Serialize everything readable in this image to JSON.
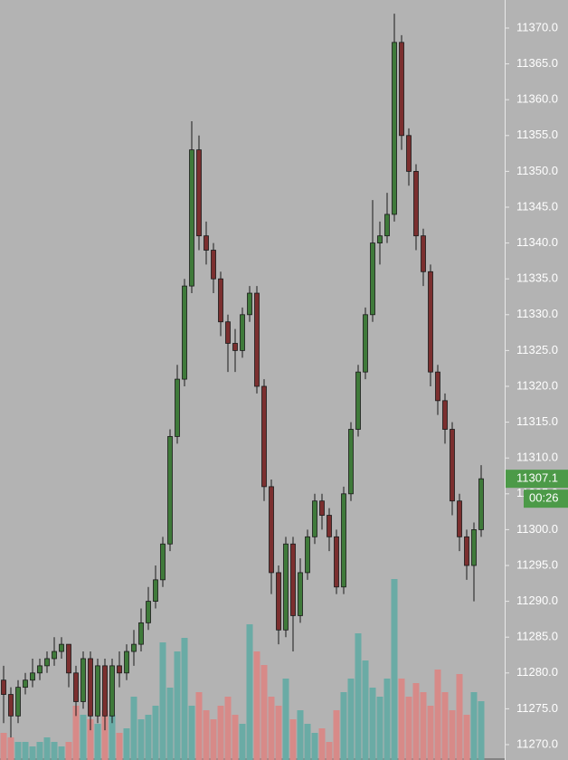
{
  "chart_data": {
    "type": "candlestick",
    "open": [
      11279,
      11277,
      11274,
      11278,
      11279,
      11280,
      11281,
      11282,
      11283,
      11284,
      11280,
      11276,
      11282,
      11274,
      11281,
      11274,
      11281,
      11280,
      11283,
      11284,
      11287,
      11290,
      11293,
      11298,
      11313,
      11321,
      11334,
      11353,
      11341,
      11339,
      11335,
      11329,
      11326,
      11325,
      11330,
      11333,
      11320,
      11306,
      11294,
      11286,
      11298,
      11288,
      11294,
      11299,
      11304,
      11302,
      11299,
      11292,
      11305,
      11314,
      11322,
      11330,
      11340,
      11341,
      11344,
      11368,
      11355,
      11350,
      11341,
      11336,
      11322,
      11318,
      11314,
      11304,
      11299,
      11295,
      11300
    ],
    "high": [
      11281,
      11278,
      11279,
      11280,
      11282,
      11282,
      11283,
      11285,
      11285,
      11284,
      11281,
      11283,
      11283,
      11282,
      11282,
      11282,
      11283,
      11284,
      11286,
      11289,
      11292,
      11295,
      11299,
      11314,
      11323,
      11335,
      11357,
      11355,
      11343,
      11340,
      11336,
      11330,
      11328,
      11331,
      11334,
      11334,
      11321,
      11307,
      11295,
      11299,
      11299,
      11296,
      11300,
      11305,
      11305,
      11303,
      11300,
      11306,
      11315,
      11323,
      11331,
      11346,
      11343,
      11347,
      11372,
      11369,
      11356,
      11351,
      11342,
      11337,
      11323,
      11319,
      11315,
      11305,
      11300,
      11301,
      11309
    ],
    "low": [
      11273,
      11271,
      11273,
      11277,
      11278,
      11279,
      11280,
      11281,
      11282,
      11278,
      11274,
      11275,
      11272,
      11273,
      11272,
      11273,
      11278,
      11279,
      11281,
      11283,
      11286,
      11289,
      11292,
      11297,
      11312,
      11320,
      11333,
      11339,
      11337,
      11333,
      11327,
      11322,
      11322,
      11324,
      11329,
      11319,
      11304,
      11291,
      11284,
      11285,
      11283,
      11287,
      11293,
      11298,
      11300,
      11297,
      11291,
      11291,
      11304,
      11313,
      11321,
      11329,
      11337,
      11340,
      11343,
      11353,
      11348,
      11339,
      11334,
      11320,
      11316,
      11312,
      11302,
      11297,
      11293,
      11290,
      11299
    ],
    "close": [
      11277,
      11274,
      11278,
      11279,
      11280,
      11281,
      11282,
      11283,
      11284,
      11280,
      11276,
      11282,
      11274,
      11281,
      11274,
      11281,
      11280,
      11283,
      11284,
      11287,
      11290,
      11293,
      11298,
      11313,
      11321,
      11334,
      11353,
      11341,
      11339,
      11335,
      11329,
      11326,
      11325,
      11330,
      11333,
      11320,
      11306,
      11294,
      11286,
      11298,
      11288,
      11294,
      11299,
      11304,
      11302,
      11299,
      11292,
      11305,
      11314,
      11322,
      11330,
      11340,
      11341,
      11344,
      11368,
      11355,
      11350,
      11341,
      11336,
      11322,
      11318,
      11314,
      11304,
      11299,
      11295,
      11300,
      11307.1
    ],
    "volume": [
      30,
      25,
      20,
      20,
      15,
      20,
      25,
      20,
      15,
      20,
      60,
      50,
      45,
      40,
      55,
      50,
      30,
      35,
      70,
      45,
      50,
      60,
      130,
      80,
      120,
      135,
      60,
      75,
      55,
      45,
      60,
      70,
      50,
      40,
      150,
      120,
      105,
      70,
      60,
      90,
      45,
      55,
      40,
      30,
      35,
      20,
      55,
      75,
      90,
      140,
      110,
      80,
      70,
      90,
      200,
      90,
      70,
      85,
      75,
      60,
      100,
      75,
      55,
      95,
      50,
      75,
      65
    ],
    "ylim": [
      11270,
      11370
    ],
    "yticks": [
      {
        "value": 11270,
        "label": "11270.0"
      },
      {
        "value": 11275,
        "label": "11275.0"
      },
      {
        "value": 11280,
        "label": "11280.0"
      },
      {
        "value": 11285,
        "label": "11285.0"
      },
      {
        "value": 11290,
        "label": "11290.0"
      },
      {
        "value": 11295,
        "label": "11295.0"
      },
      {
        "value": 11300,
        "label": "11300.0"
      },
      {
        "value": 11305,
        "label": "11305.0"
      },
      {
        "value": 11310,
        "label": "11310.0"
      },
      {
        "value": 11315,
        "label": "11315.0"
      },
      {
        "value": 11320,
        "label": "11320.0"
      },
      {
        "value": 11325,
        "label": "11325.0"
      },
      {
        "value": 11330,
        "label": "11330.0"
      },
      {
        "value": 11335,
        "label": "11335.0"
      },
      {
        "value": 11340,
        "label": "11340.0"
      },
      {
        "value": 11345,
        "label": "11345.0"
      },
      {
        "value": 11350,
        "label": "11350.0"
      },
      {
        "value": 11355,
        "label": "11355.0"
      },
      {
        "value": 11360,
        "label": "11360.0"
      },
      {
        "value": 11365,
        "label": "11365.0"
      },
      {
        "value": 11370,
        "label": "11370.0"
      }
    ],
    "current_price": 11307.1,
    "countdown": "00:26",
    "up_color": "#3f7a3a",
    "down_color": "#7b2f2f",
    "volume_up_color": "#6aaba5",
    "volume_down_color": "#d78a88",
    "tag_color": "#4c9a48"
  }
}
